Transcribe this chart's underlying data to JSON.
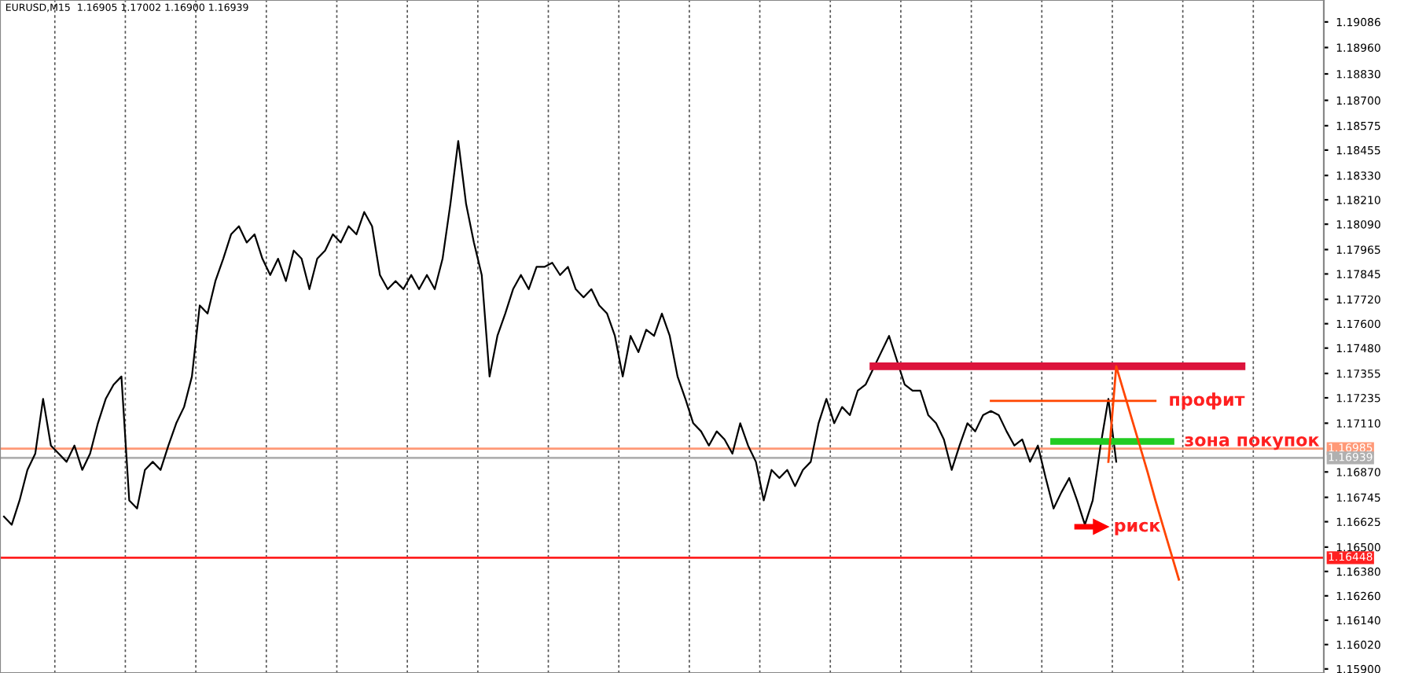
{
  "chart_data": {
    "type": "line",
    "annotations": [
      "EURUSD,M15  1.16905 1.17002 1.16900 1.16939"
    ],
    "categories": [
      null,
      null,
      null,
      null,
      null,
      null,
      null,
      null,
      null,
      null,
      null,
      null,
      null,
      null,
      null,
      null,
      null,
      null,
      null,
      null,
      null,
      null,
      null,
      null,
      null,
      null,
      null,
      null,
      null,
      null,
      null,
      null,
      null,
      null,
      null,
      null,
      null,
      null,
      null,
      null,
      null,
      null,
      null,
      null,
      null,
      null,
      null,
      null,
      null,
      null,
      null,
      null,
      null,
      null,
      null,
      null,
      null,
      null,
      null,
      null,
      null,
      null,
      null,
      null,
      null,
      null,
      null,
      null,
      null,
      null,
      null,
      null,
      null,
      null,
      null,
      null,
      null,
      null,
      null,
      null,
      null,
      null,
      null,
      null,
      null,
      null,
      null,
      null,
      null,
      null,
      null,
      null,
      null,
      null,
      null,
      null,
      null,
      null,
      null,
      null,
      null,
      null,
      null,
      null,
      null,
      null,
      null,
      null,
      null,
      null,
      null,
      null,
      null,
      null,
      null,
      null,
      null,
      null,
      null,
      null,
      null,
      null,
      null,
      null,
      null,
      null,
      null,
      null,
      null,
      null,
      null,
      null,
      null,
      null,
      null,
      null,
      null,
      null,
      null,
      null,
      null,
      null,
      null,
      null,
      null,
      null,
      null,
      null,
      null,
      null,
      null,
      null,
      null,
      null,
      null,
      null,
      null,
      null,
      null,
      null,
      null,
      null,
      null,
      null,
      null,
      null,
      null,
      null,
      null
    ],
    "series": [
      {
        "color": "#000000",
        "values": [
          1.1665,
          1.1661,
          1.1673,
          1.1688,
          1.1696,
          1.1723,
          1.17,
          1.1696,
          1.1692,
          1.17,
          1.1688,
          1.1696,
          1.1711,
          1.1723,
          1.173,
          1.1734,
          1.1673,
          1.1669,
          1.1688,
          1.1692,
          1.1688,
          1.17,
          1.1711,
          1.1719,
          1.1734,
          1.1769,
          1.1765,
          1.1781,
          1.1792,
          1.1804,
          1.1808,
          1.18,
          1.1804,
          1.1792,
          1.1784,
          1.1792,
          1.1781,
          1.1796,
          1.1792,
          1.1777,
          1.1792,
          1.1796,
          1.1804,
          1.18,
          1.1808,
          1.1804,
          1.1815,
          1.1808,
          1.1784,
          1.1777,
          1.1781,
          1.1777,
          1.1784,
          1.1777,
          1.1784,
          1.1777,
          1.1792,
          1.1819,
          1.185,
          1.1819,
          1.18,
          1.1784,
          1.1734,
          1.1754,
          1.1765,
          1.1777,
          1.1784,
          1.1777,
          1.1788,
          1.1788,
          1.179,
          1.1784,
          1.1788,
          1.1777,
          1.1773,
          1.1777,
          1.1769,
          1.1765,
          1.1754,
          1.1734,
          1.1754,
          1.1746,
          1.1757,
          1.1754,
          1.1765,
          1.1754,
          1.1734,
          1.1723,
          1.1711,
          1.1707,
          1.17,
          1.1707,
          1.1703,
          1.1696,
          1.1711,
          1.17,
          1.1692,
          1.1673,
          1.1688,
          1.1684,
          1.1688,
          1.168,
          1.1688,
          1.1692,
          1.1711,
          1.1723,
          1.1711,
          1.1719,
          1.1715,
          1.1727,
          1.173,
          1.1738,
          1.1746,
          1.1754,
          1.1742,
          1.173,
          1.1727,
          1.1727,
          1.1715,
          1.1711,
          1.1703,
          1.1688,
          1.17,
          1.1711,
          1.1707,
          1.1715,
          1.1717,
          1.1715,
          1.1707,
          1.17,
          1.1703,
          1.1692,
          1.17,
          1.1684,
          1.1669,
          1.1677,
          1.1684,
          1.1673,
          1.1661,
          1.1673,
          1.17,
          1.1723,
          1.1692,
          null,
          null,
          null,
          null,
          null,
          null,
          null,
          null,
          null,
          null,
          null,
          null,
          null,
          null,
          null,
          null,
          null,
          null,
          null,
          null,
          null,
          null,
          null,
          null,
          null,
          null
        ]
      },
      {
        "color": "#dc143c",
        "values": [
          null,
          null,
          null,
          null,
          null,
          null,
          null,
          null,
          null,
          null,
          null,
          null,
          null,
          null,
          null,
          null,
          null,
          null,
          null,
          null,
          null,
          null,
          null,
          null,
          null,
          null,
          null,
          null,
          null,
          null,
          null,
          null,
          null,
          null,
          null,
          null,
          null,
          null,
          null,
          null,
          null,
          null,
          null,
          null,
          null,
          null,
          null,
          null,
          null,
          null,
          null,
          null,
          null,
          null,
          null,
          null,
          null,
          null,
          null,
          null,
          null,
          null,
          null,
          null,
          null,
          null,
          null,
          null,
          null,
          null,
          null,
          null,
          null,
          null,
          null,
          null,
          null,
          null,
          null,
          null,
          null,
          null,
          null,
          null,
          null,
          null,
          null,
          null,
          null,
          null,
          null,
          null,
          null,
          null,
          null,
          null,
          null,
          null,
          null,
          null,
          null,
          null,
          null,
          null,
          null,
          null,
          null,
          null,
          null,
          null,
          null,
          1.1739,
          1.1739,
          1.1739,
          1.1739,
          1.1739,
          1.1739,
          1.1739,
          1.1739,
          1.1739,
          1.1739,
          1.1739,
          1.1739,
          1.1739,
          1.1739,
          1.1739,
          1.1739,
          1.1739,
          1.1739,
          1.1739,
          1.1739,
          1.1739,
          1.1739,
          1.1739,
          1.1739,
          1.1739,
          1.1739,
          1.1739,
          1.1739,
          1.1739,
          1.1739,
          1.1739,
          1.1739,
          1.1739,
          1.1739,
          1.1739,
          1.1739,
          1.1739,
          1.1739,
          1.1739,
          1.1739,
          1.1739,
          1.1739,
          1.1739,
          1.1739,
          1.1739,
          1.1739,
          1.1739,
          1.1739,
          null,
          null,
          null,
          null,
          null,
          null,
          null,
          null,
          null,
          null
        ]
      },
      {
        "name": "профит",
        "color": "#ff4500",
        "values": [
          null,
          null,
          null,
          null,
          null,
          null,
          null,
          null,
          null,
          null,
          null,
          null,
          null,
          null,
          null,
          null,
          null,
          null,
          null,
          null,
          null,
          null,
          null,
          null,
          null,
          null,
          null,
          null,
          null,
          null,
          null,
          null,
          null,
          null,
          null,
          null,
          null,
          null,
          null,
          null,
          null,
          null,
          null,
          null,
          null,
          null,
          null,
          null,
          null,
          null,
          null,
          null,
          null,
          null,
          null,
          null,
          null,
          null,
          null,
          null,
          null,
          null,
          null,
          null,
          null,
          null,
          null,
          null,
          null,
          null,
          null,
          null,
          null,
          null,
          null,
          null,
          null,
          null,
          null,
          null,
          null,
          null,
          null,
          null,
          null,
          null,
          null,
          null,
          null,
          null,
          null,
          null,
          null,
          null,
          null,
          null,
          null,
          null,
          null,
          null,
          null,
          null,
          null,
          null,
          null,
          null,
          null,
          null,
          null,
          null,
          null,
          null,
          null,
          null,
          null,
          null,
          null,
          null,
          null,
          null,
          null,
          null,
          null,
          null,
          null,
          null,
          1.1722,
          1.1722,
          1.1722,
          1.1722,
          1.1722,
          1.1722,
          1.1722,
          1.1722,
          1.1722,
          1.1722,
          1.1722,
          1.1722,
          1.1722,
          1.1722,
          1.1722,
          1.1722,
          1.1722,
          1.1722,
          1.1722,
          1.1722,
          1.1722,
          1.1722,
          null,
          null,
          null,
          null,
          null,
          null,
          null,
          null,
          null,
          null,
          null,
          null,
          null,
          null,
          null,
          null,
          null,
          null,
          null,
          null,
          null
        ]
      },
      {
        "name": "зона покупок",
        "color": "#22cc22",
        "values": [
          null,
          null,
          null,
          null,
          null,
          null,
          null,
          null,
          null,
          null,
          null,
          null,
          null,
          null,
          null,
          null,
          null,
          null,
          null,
          null,
          null,
          null,
          null,
          null,
          null,
          null,
          null,
          null,
          null,
          null,
          null,
          null,
          null,
          null,
          null,
          null,
          null,
          null,
          null,
          null,
          null,
          null,
          null,
          null,
          null,
          null,
          null,
          null,
          null,
          null,
          null,
          null,
          null,
          null,
          null,
          null,
          null,
          null,
          null,
          null,
          null,
          null,
          null,
          null,
          null,
          null,
          null,
          null,
          null,
          null,
          null,
          null,
          null,
          null,
          null,
          null,
          null,
          null,
          null,
          null,
          null,
          null,
          null,
          null,
          null,
          null,
          null,
          null,
          null,
          null,
          null,
          null,
          null,
          null,
          null,
          null,
          null,
          null,
          null,
          null,
          null,
          null,
          null,
          null,
          null,
          null,
          null,
          null,
          null,
          null,
          null,
          null,
          null,
          null,
          null,
          null,
          null,
          null,
          null,
          null,
          null,
          null,
          null,
          null,
          null,
          null,
          null,
          null,
          null,
          null,
          null,
          null,
          null,
          null,
          1.1702,
          1.1702,
          1.1702,
          1.1702,
          1.1702,
          1.1702,
          1.1702,
          1.1702,
          1.1702,
          1.1702,
          1.1702,
          1.1702,
          1.1702,
          1.1702,
          1.1702,
          1.1702,
          null,
          null,
          null,
          null,
          null,
          null,
          null,
          null,
          null,
          null,
          null,
          null,
          null,
          null,
          null,
          null,
          null,
          null,
          null
        ]
      },
      {
        "color": "#ff4500",
        "values": [
          null,
          null,
          null,
          null,
          null,
          null,
          null,
          null,
          null,
          null,
          null,
          null,
          null,
          null,
          null,
          null,
          null,
          null,
          null,
          null,
          null,
          null,
          null,
          null,
          null,
          null,
          null,
          null,
          null,
          null,
          null,
          null,
          null,
          null,
          null,
          null,
          null,
          null,
          null,
          null,
          null,
          null,
          null,
          null,
          null,
          null,
          null,
          null,
          null,
          null,
          null,
          null,
          null,
          null,
          null,
          null,
          null,
          null,
          null,
          null,
          null,
          null,
          null,
          null,
          null,
          null,
          null,
          null,
          null,
          null,
          null,
          null,
          null,
          null,
          null,
          null,
          null,
          null,
          null,
          null,
          null,
          null,
          null,
          null,
          null,
          null,
          null,
          null,
          null,
          null,
          null,
          null,
          null,
          null,
          null,
          null,
          null,
          null,
          null,
          null,
          null,
          null,
          null,
          null,
          null,
          null,
          null,
          null,
          null,
          null,
          null,
          null,
          null,
          null,
          null,
          null,
          null,
          null,
          null,
          null,
          null,
          null,
          null,
          null,
          null,
          null,
          null,
          null,
          null,
          null,
          null,
          null,
          null,
          null,
          null,
          null,
          null,
          null,
          null,
          null,
          null,
          1.1692,
          1.1739,
          1.1726,
          1.1713,
          1.17,
          1.1687,
          1.1673,
          1.166,
          1.1647,
          1.1634,
          null,
          null,
          null,
          null,
          null,
          null,
          null,
          null,
          null,
          null,
          null,
          null,
          null,
          null,
          null,
          null,
          null,
          null
        ]
      },
      {
        "name": "риск",
        "color": "#ff0000",
        "values": [
          null,
          null,
          null,
          null,
          null,
          null,
          null,
          null,
          null,
          null,
          null,
          null,
          null,
          null,
          null,
          null,
          null,
          null,
          null,
          null,
          null,
          null,
          null,
          null,
          null,
          null,
          null,
          null,
          null,
          null,
          null,
          null,
          null,
          null,
          null,
          null,
          null,
          null,
          null,
          null,
          null,
          null,
          null,
          null,
          null,
          null,
          null,
          null,
          null,
          null,
          null,
          null,
          null,
          null,
          null,
          null,
          null,
          null,
          null,
          null,
          null,
          null,
          null,
          null,
          null,
          null,
          null,
          null,
          null,
          null,
          null,
          null,
          null,
          null,
          null,
          null,
          null,
          null,
          null,
          null,
          null,
          null,
          null,
          null,
          null,
          null,
          null,
          null,
          null,
          null,
          null,
          null,
          null,
          null,
          null,
          null,
          null,
          null,
          null,
          null,
          null,
          null,
          null,
          null,
          null,
          null,
          null,
          null,
          null,
          null,
          null,
          null,
          null,
          null,
          null,
          null,
          null,
          null,
          null,
          null,
          null,
          null,
          null,
          null,
          null,
          null,
          null,
          null,
          null,
          null,
          null,
          null,
          null,
          null,
          null,
          null,
          null,
          1.166,
          1.166,
          1.166,
          1.166,
          null,
          null,
          null,
          null,
          null,
          null,
          null,
          null,
          null,
          null,
          null,
          null,
          null,
          null,
          null,
          null,
          null,
          null,
          null,
          null,
          null,
          null,
          null,
          null,
          null,
          null,
          null,
          null
        ]
      }
    ],
    "ref_lines": [
      {
        "axis": "y",
        "value": 1.16985,
        "label": "1.16985",
        "color": "#ff9977"
      },
      {
        "axis": "y",
        "value": 1.16939,
        "label": "1.16939",
        "color": "#b0b0b0"
      },
      {
        "axis": "y",
        "value": 1.16448,
        "label": "1.16448",
        "color": "#ff2020"
      }
    ],
    "ylim": [
      1.1588,
      1.19194
    ],
    "yticks": [
      {
        "value": 1.19086,
        "label": "1.19086"
      },
      {
        "value": 1.1896,
        "label": "1.18960"
      },
      {
        "value": 1.1883,
        "label": "1.18830"
      },
      {
        "value": 1.187,
        "label": "1.18700"
      },
      {
        "value": 1.18575,
        "label": "1.18575"
      },
      {
        "value": 1.18455,
        "label": "1.18455"
      },
      {
        "value": 1.1833,
        "label": "1.18330"
      },
      {
        "value": 1.1821,
        "label": "1.18210"
      },
      {
        "value": 1.1809,
        "label": "1.18090"
      },
      {
        "value": 1.17965,
        "label": "1.17965"
      },
      {
        "value": 1.17845,
        "label": "1.17845"
      },
      {
        "value": 1.1772,
        "label": "1.17720"
      },
      {
        "value": 1.176,
        "label": "1.17600"
      },
      {
        "value": 1.1748,
        "label": "1.17480"
      },
      {
        "value": 1.17355,
        "label": "1.17355"
      },
      {
        "value": 1.17235,
        "label": "1.17235"
      },
      {
        "value": 1.1711,
        "label": "1.17110"
      },
      {
        "value": 1.1687,
        "label": "1.16870"
      },
      {
        "value": 1.16745,
        "label": "1.16745"
      },
      {
        "value": 1.16625,
        "label": "1.16625"
      },
      {
        "value": 1.165,
        "label": "1.16500"
      },
      {
        "value": 1.1638,
        "label": "1.16380"
      },
      {
        "value": 1.1626,
        "label": "1.16260"
      },
      {
        "value": 1.1614,
        "label": "1.16140"
      },
      {
        "value": 1.1602,
        "label": "1.16020"
      },
      {
        "value": 1.159,
        "label": "1.15900"
      }
    ],
    "grid": "x",
    "tick_labels": "y",
    "line_style": "solid"
  }
}
